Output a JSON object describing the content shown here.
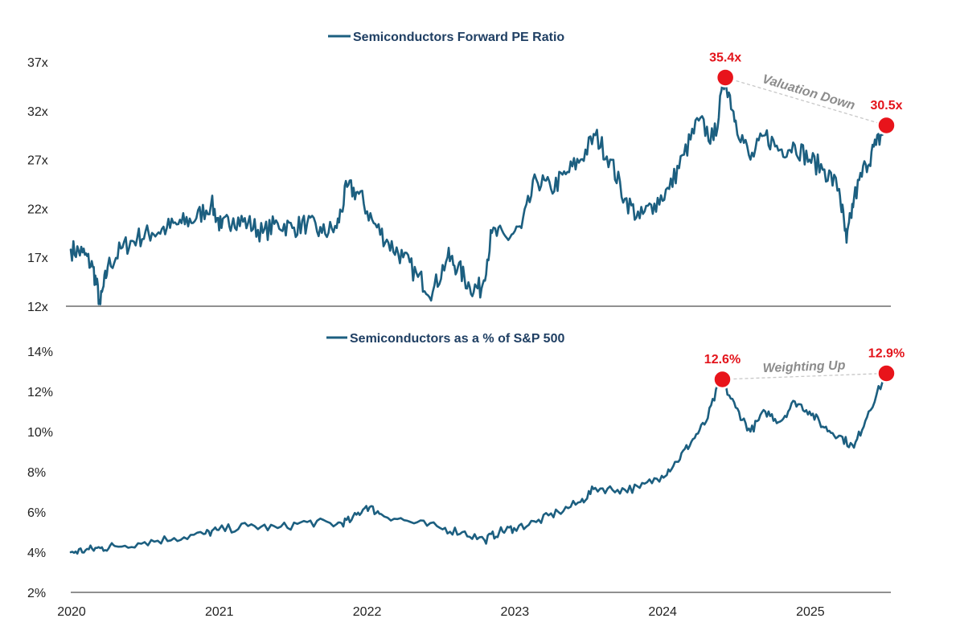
{
  "chart_data": [
    {
      "type": "line",
      "legend": "Semiconductors Forward PE Ratio",
      "ylim": [
        12,
        37
      ],
      "ytick_labels": [
        "12x",
        "17x",
        "22x",
        "27x",
        "32x",
        "37x"
      ],
      "ytick_values": [
        12,
        17,
        22,
        27,
        32,
        37
      ],
      "xlim": [
        2020.0,
        2025.55
      ],
      "x": [
        2020.0,
        2020.08,
        2020.15,
        2020.2,
        2020.25,
        2020.35,
        2020.45,
        2020.55,
        2020.65,
        2020.75,
        2020.85,
        2020.95,
        2021.02,
        2021.1,
        2021.2,
        2021.3,
        2021.4,
        2021.5,
        2021.6,
        2021.7,
        2021.8,
        2021.87,
        2021.95,
        2022.05,
        2022.15,
        2022.25,
        2022.35,
        2022.45,
        2022.55,
        2022.62,
        2022.7,
        2022.78,
        2022.85,
        2022.95,
        2023.05,
        2023.15,
        2023.25,
        2023.35,
        2023.45,
        2023.55,
        2023.65,
        2023.75,
        2023.85,
        2023.95,
        2024.05,
        2024.15,
        2024.25,
        2024.35,
        2024.43,
        2024.5,
        2024.6,
        2024.7,
        2024.8,
        2024.9,
        2025.0,
        2025.1,
        2025.2,
        2025.25,
        2025.3,
        2025.38,
        2025.45,
        2025.52
      ],
      "values": [
        17.8,
        17.5,
        16.0,
        12.2,
        16.0,
        18.0,
        19.0,
        19.5,
        20.0,
        20.5,
        21.0,
        22.5,
        20.0,
        21.0,
        20.5,
        19.5,
        20.5,
        20.0,
        20.5,
        19.5,
        20.0,
        24.2,
        23.5,
        20.5,
        18.5,
        17.0,
        15.0,
        13.5,
        17.0,
        16.0,
        14.0,
        13.8,
        19.5,
        19.0,
        20.0,
        25.0,
        24.0,
        25.5,
        27.0,
        29.5,
        27.0,
        23.0,
        21.0,
        22.5,
        24.0,
        27.5,
        31.0,
        29.0,
        35.4,
        31.0,
        27.0,
        29.5,
        28.0,
        28.5,
        27.0,
        26.0,
        24.0,
        18.5,
        23.0,
        26.5,
        28.5,
        30.5
      ],
      "highlights": [
        {
          "x": 2024.43,
          "value": 35.4,
          "label": "35.4x"
        },
        {
          "x": 2025.52,
          "value": 30.5,
          "label": "30.5x"
        }
      ],
      "annotation": "Valuation Down"
    },
    {
      "type": "line",
      "legend": "Semiconductors as a % of S&P 500",
      "ylim": [
        2,
        14
      ],
      "ytick_labels": [
        "2%",
        "4%",
        "6%",
        "8%",
        "10%",
        "12%",
        "14%"
      ],
      "ytick_values": [
        2,
        4,
        6,
        8,
        10,
        12,
        14
      ],
      "xlim": [
        2020.0,
        2025.55
      ],
      "xtick_labels": [
        "2020",
        "2021",
        "2022",
        "2023",
        "2024",
        "2025"
      ],
      "xtick_values": [
        2020,
        2021,
        2022,
        2023,
        2024,
        2025
      ],
      "x": [
        2020.0,
        2020.1,
        2020.2,
        2020.3,
        2020.5,
        2020.7,
        2020.9,
        2021.0,
        2021.2,
        2021.4,
        2021.6,
        2021.8,
        2021.9,
        2022.0,
        2022.1,
        2022.3,
        2022.5,
        2022.65,
        2022.8,
        2022.9,
        2023.0,
        2023.15,
        2023.3,
        2023.45,
        2023.55,
        2023.7,
        2023.85,
        2024.0,
        2024.1,
        2024.2,
        2024.3,
        2024.4,
        2024.5,
        2024.6,
        2024.7,
        2024.8,
        2024.9,
        2025.0,
        2025.1,
        2025.2,
        2025.3,
        2025.4,
        2025.52
      ],
      "values": [
        4.0,
        4.1,
        4.2,
        4.3,
        4.5,
        4.7,
        4.9,
        5.1,
        5.3,
        5.2,
        5.5,
        5.4,
        5.6,
        6.3,
        5.9,
        5.5,
        5.2,
        5.0,
        4.6,
        5.0,
        5.2,
        5.5,
        6.0,
        6.5,
        7.2,
        7.1,
        7.2,
        7.8,
        8.5,
        9.5,
        10.5,
        12.6,
        11.2,
        10.0,
        11.0,
        10.5,
        11.5,
        11.0,
        10.2,
        9.8,
        9.2,
        11.0,
        12.9
      ],
      "highlights": [
        {
          "x": 2024.41,
          "value": 12.6,
          "label": "12.6%"
        },
        {
          "x": 2025.52,
          "value": 12.9,
          "label": "12.9%"
        }
      ],
      "annotation": "Weighting Up"
    }
  ],
  "colors": {
    "series": "#1c5f80",
    "legend_text": "#1f3f63",
    "highlight": "#e8141b",
    "highlight_label": "#e3141b",
    "annotation": "#8c8c8c"
  }
}
